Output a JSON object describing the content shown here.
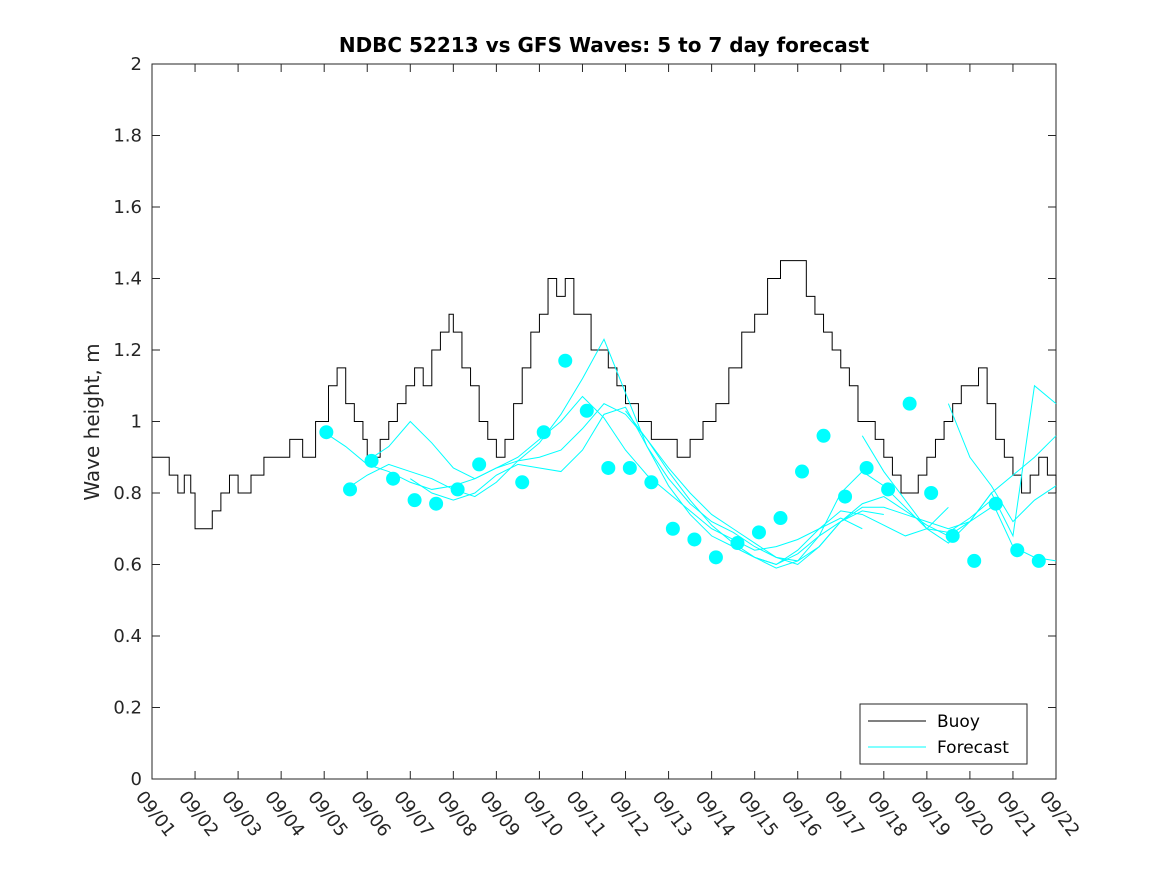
{
  "chart_data": {
    "type": "line",
    "title": "NDBC 52213 vs GFS Waves: 5 to 7 day forecast",
    "xlabel": "",
    "ylabel": "Wave height, m",
    "xlim": [
      0,
      21
    ],
    "ylim": [
      0,
      2
    ],
    "x_unit": "days since 09/01",
    "x_ticks": [
      0,
      1,
      2,
      3,
      4,
      5,
      6,
      7,
      8,
      9,
      10,
      11,
      12,
      13,
      14,
      15,
      16,
      17,
      18,
      19,
      20,
      21
    ],
    "x_tick_labels": [
      "09/01",
      "09/02",
      "09/03",
      "09/04",
      "09/05",
      "09/06",
      "09/07",
      "09/08",
      "09/09",
      "09/10",
      "09/11",
      "09/12",
      "09/13",
      "09/14",
      "09/15",
      "09/16",
      "09/17",
      "09/18",
      "09/19",
      "09/20",
      "09/21",
      "09/22"
    ],
    "y_ticks": [
      0,
      0.2,
      0.4,
      0.6,
      0.8,
      1,
      1.2,
      1.4,
      1.6,
      1.8,
      2
    ],
    "y_tick_labels": [
      "0",
      "0.2",
      "0.4",
      "0.6",
      "0.8",
      "1",
      "1.2",
      "1.4",
      "1.6",
      "1.8",
      "2"
    ],
    "grid": false,
    "legend": {
      "placement": "bottom-right",
      "entries": [
        "Buoy",
        "Forecast"
      ]
    },
    "colors": {
      "buoy": "#000000",
      "forecast": "#00ffff",
      "axis": "#262626"
    },
    "series": [
      {
        "name": "Buoy",
        "x": [
          0,
          0.2,
          0.4,
          0.6,
          0.75,
          0.9,
          1.0,
          1.2,
          1.4,
          1.6,
          1.8,
          2.0,
          2.3,
          2.6,
          2.9,
          3.2,
          3.5,
          3.8,
          4.1,
          4.3,
          4.5,
          4.7,
          4.9,
          5.0,
          5.3,
          5.5,
          5.7,
          5.9,
          6.1,
          6.3,
          6.5,
          6.7,
          6.9,
          7.0,
          7.2,
          7.4,
          7.6,
          7.8,
          8.0,
          8.2,
          8.4,
          8.6,
          8.8,
          9.0,
          9.2,
          9.4,
          9.6,
          9.8,
          10.0,
          10.2,
          10.4,
          10.6,
          10.8,
          11.0,
          11.3,
          11.6,
          11.9,
          12.2,
          12.5,
          12.8,
          13.1,
          13.4,
          13.7,
          14.0,
          14.3,
          14.6,
          14.9,
          15.2,
          15.4,
          15.6,
          15.8,
          16.0,
          16.2,
          16.4,
          16.6,
          16.8,
          17.0,
          17.2,
          17.4,
          17.6,
          17.8,
          18.0,
          18.2,
          18.4,
          18.6,
          18.8,
          19.0,
          19.2,
          19.4,
          19.6,
          19.8,
          20.0,
          20.2,
          20.4,
          20.6,
          20.8,
          21.0
        ],
        "values": [
          0.9,
          0.9,
          0.85,
          0.8,
          0.85,
          0.8,
          0.7,
          0.7,
          0.75,
          0.8,
          0.85,
          0.8,
          0.85,
          0.9,
          0.9,
          0.95,
          0.9,
          1.0,
          1.1,
          1.15,
          1.05,
          1.0,
          0.95,
          0.9,
          0.95,
          1.0,
          1.05,
          1.1,
          1.15,
          1.1,
          1.2,
          1.25,
          1.3,
          1.25,
          1.15,
          1.1,
          1.0,
          0.95,
          0.9,
          0.95,
          1.05,
          1.15,
          1.25,
          1.3,
          1.4,
          1.35,
          1.4,
          1.3,
          1.3,
          1.2,
          1.2,
          1.15,
          1.1,
          1.05,
          1.0,
          0.95,
          0.95,
          0.9,
          0.95,
          1.0,
          1.05,
          1.15,
          1.25,
          1.3,
          1.4,
          1.45,
          1.45,
          1.35,
          1.3,
          1.25,
          1.2,
          1.15,
          1.1,
          1.0,
          1.0,
          0.95,
          0.9,
          0.85,
          0.8,
          0.8,
          0.85,
          0.9,
          0.95,
          1.0,
          1.05,
          1.1,
          1.1,
          1.15,
          1.05,
          0.95,
          0.9,
          0.85,
          0.8,
          0.85,
          0.9,
          0.85,
          0.8
        ]
      },
      {
        "name": "Forecast",
        "lines": [
          {
            "x": [
              4,
              4.5,
              5,
              5.5,
              6,
              6.5,
              7,
              7.5,
              8,
              8.5,
              9,
              9.5,
              10,
              10.5,
              11,
              11.5,
              12,
              12.5,
              13,
              13.5,
              14,
              14.5,
              15,
              15.5,
              16,
              16.5
            ],
            "values": [
              0.97,
              0.93,
              0.88,
              0.86,
              0.83,
              0.81,
              0.82,
              0.84,
              0.87,
              0.9,
              0.95,
              1.0,
              1.07,
              1.01,
              0.92,
              0.85,
              0.8,
              0.75,
              0.7,
              0.67,
              0.64,
              0.65,
              0.67,
              0.7,
              0.73,
              0.7
            ]
          },
          {
            "x": [
              4.5,
              5,
              5.5,
              6,
              6.5,
              7,
              7.5,
              8,
              8.5,
              9,
              9.5,
              10,
              10.5,
              11,
              11.5,
              12,
              12.5,
              13,
              13.5,
              14,
              14.5,
              15,
              15.5,
              16,
              16.5,
              17
            ],
            "values": [
              0.81,
              0.85,
              0.88,
              0.86,
              0.84,
              0.81,
              0.79,
              0.83,
              0.89,
              0.94,
              1.02,
              1.12,
              1.23,
              1.08,
              0.93,
              0.82,
              0.74,
              0.68,
              0.65,
              0.62,
              0.6,
              0.63,
              0.68,
              0.72,
              0.75,
              0.74
            ]
          },
          {
            "x": [
              5,
              5.5,
              6,
              6.5,
              7,
              7.5,
              8,
              8.5,
              9,
              9.5,
              10,
              10.5,
              11,
              11.5,
              12,
              12.5,
              13,
              13.5,
              14,
              14.5,
              15,
              15.5,
              16,
              16.5,
              17,
              17.5,
              18,
              18.5
            ],
            "values": [
              0.89,
              0.93,
              1.0,
              0.94,
              0.87,
              0.84,
              0.87,
              0.89,
              0.9,
              0.92,
              0.98,
              1.05,
              1.02,
              0.95,
              0.86,
              0.78,
              0.71,
              0.66,
              0.62,
              0.6,
              0.64,
              0.7,
              0.75,
              0.74,
              0.71,
              0.68,
              0.7,
              0.76
            ]
          },
          {
            "x": [
              6,
              6.5,
              7,
              7.5,
              8,
              8.5,
              9,
              9.5,
              10,
              10.5,
              11,
              11.5,
              12,
              12.5,
              13,
              13.5,
              14,
              14.5,
              15,
              15.5,
              16,
              16.5,
              17,
              17.5,
              18,
              18.5,
              19,
              19.5
            ],
            "values": [
              0.84,
              0.8,
              0.78,
              0.8,
              0.85,
              0.88,
              0.87,
              0.86,
              0.92,
              1.02,
              1.04,
              0.93,
              0.84,
              0.77,
              0.72,
              0.69,
              0.65,
              0.62,
              0.6,
              0.65,
              0.72,
              0.76,
              0.76,
              0.74,
              0.72,
              0.7,
              0.72,
              0.76
            ]
          },
          {
            "x": [
              11,
              11.5,
              12,
              12.5,
              13,
              13.5,
              14,
              14.5,
              15,
              15.5,
              16,
              16.5,
              17,
              17.5,
              18,
              18.5,
              19,
              19.5,
              20,
              20.5,
              21
            ],
            "values": [
              1.03,
              0.95,
              0.87,
              0.8,
              0.74,
              0.7,
              0.66,
              0.62,
              0.61,
              0.65,
              0.72,
              0.77,
              0.79,
              0.75,
              0.71,
              0.68,
              0.72,
              0.8,
              0.85,
              0.9,
              0.96
            ]
          },
          {
            "x": [
              14,
              14.5,
              15,
              15.5,
              16,
              16.5,
              17,
              17.5,
              18,
              18.5,
              19,
              19.5,
              20,
              20.5,
              21
            ],
            "values": [
              0.62,
              0.59,
              0.61,
              0.68,
              0.8,
              0.86,
              0.82,
              0.76,
              0.7,
              0.69,
              0.73,
              0.78,
              0.65,
              0.62,
              0.61
            ]
          },
          {
            "x": [
              16.5,
              17,
              17.5,
              18,
              18.5,
              19,
              19.5,
              20,
              20.5,
              21
            ],
            "values": [
              0.96,
              0.86,
              0.78,
              0.7,
              0.66,
              0.72,
              0.8,
              0.68,
              1.1,
              1.05
            ]
          },
          {
            "x": [
              18.5,
              19,
              19.5,
              20,
              20.5,
              21
            ],
            "values": [
              1.05,
              0.9,
              0.82,
              0.72,
              0.78,
              0.82
            ]
          }
        ],
        "markers": {
          "x": [
            4.05,
            4.6,
            5.1,
            5.6,
            6.1,
            6.6,
            7.1,
            7.6,
            8.6,
            9.1,
            9.6,
            10.1,
            10.6,
            11.1,
            11.6,
            12.1,
            12.6,
            13.1,
            13.6,
            14.1,
            14.6,
            15.1,
            15.6,
            16.1,
            16.6,
            17.1,
            17.6,
            18.1,
            18.6,
            19.1,
            19.6,
            20.1,
            20.6
          ],
          "values": [
            0.97,
            0.81,
            0.89,
            0.84,
            0.78,
            0.77,
            0.81,
            0.88,
            0.83,
            0.97,
            1.17,
            1.03,
            0.87,
            0.87,
            0.83,
            0.7,
            0.67,
            0.62,
            0.66,
            0.69,
            0.73,
            0.86,
            0.96,
            0.79,
            0.87,
            0.81,
            1.05,
            0.8,
            0.68,
            0.61,
            0.77,
            0.64,
            0.61
          ]
        }
      }
    ]
  }
}
